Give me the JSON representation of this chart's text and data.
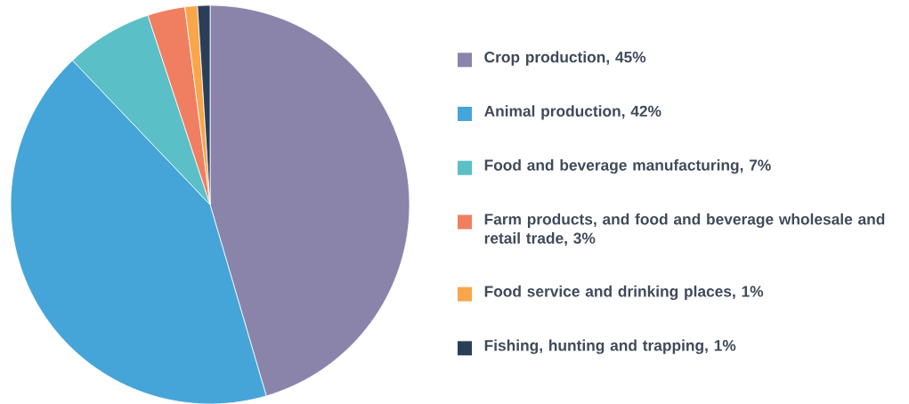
{
  "chart_data": {
    "type": "pie",
    "legend": "right",
    "categories": [
      "Crop production, 45%",
      "Animal production, 42%",
      "Food and beverage manufacturing, 7%",
      "Farm products, and food and beverage wholesale and retail trade, 3%",
      "Food service and drinking places, 1%",
      "Fishing, hunting and trapping, 1%"
    ],
    "values": [
      45,
      42,
      7,
      3,
      1,
      1
    ],
    "colors": [
      "#8a84aa",
      "#45a5d8",
      "#5bbfc7",
      "#f07e60",
      "#f9a54a",
      "#2a3f57"
    ]
  }
}
